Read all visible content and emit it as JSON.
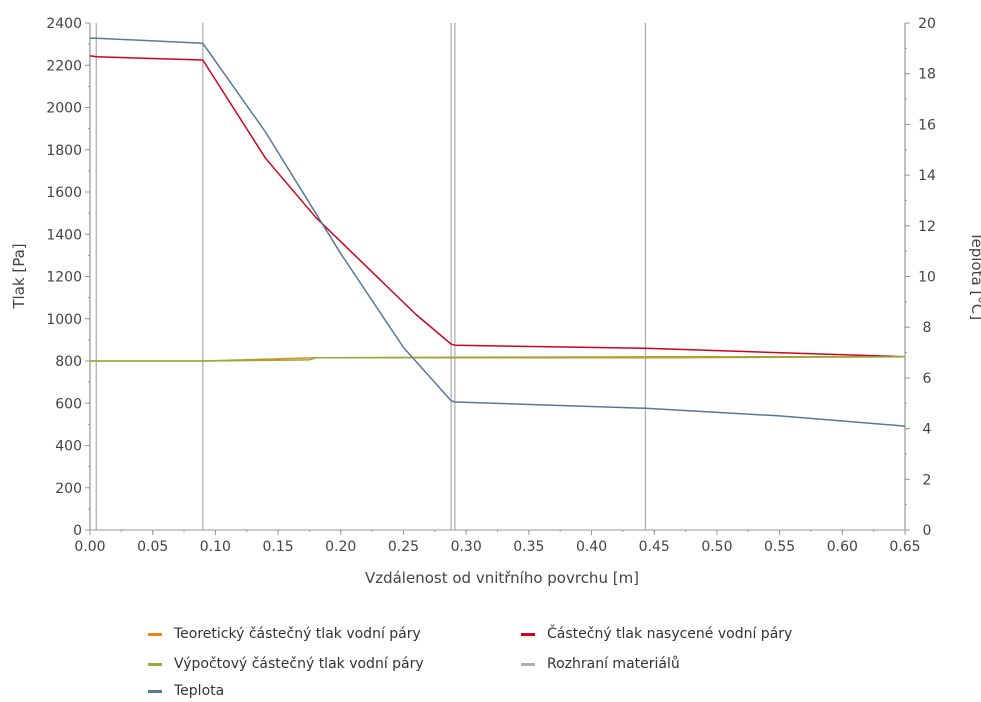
{
  "chart_data": {
    "type": "line",
    "xlabel": "Vzdálenost od vnitřního povrchu [m]",
    "ylabel_left": "Tlak [Pa]",
    "ylabel_right": "Teplota [°C]",
    "xlim": [
      0,
      0.65
    ],
    "ylim_left": [
      0,
      2400
    ],
    "ylim_right": [
      0,
      20
    ],
    "x_ticks": [
      "0.00",
      "0.05",
      "0.10",
      "0.15",
      "0.20",
      "0.25",
      "0.30",
      "0.35",
      "0.40",
      "0.45",
      "0.50",
      "0.55",
      "0.60",
      "0.65"
    ],
    "y_ticks_left": [
      "0",
      "200",
      "400",
      "600",
      "800",
      "1000",
      "1200",
      "1400",
      "1600",
      "1800",
      "2000",
      "2200",
      "2400"
    ],
    "y_ticks_right": [
      "0",
      "2",
      "4",
      "6",
      "8",
      "10",
      "12",
      "14",
      "16",
      "18",
      "20"
    ],
    "grid": false,
    "legend_position": "bottom",
    "material_boundaries": [
      0.0,
      0.005,
      0.09,
      0.288,
      0.291,
      0.443,
      0.65
    ],
    "series": [
      {
        "name": "Teoretický částečný tlak vodní páry",
        "axis": "left",
        "color": "#e8891c",
        "x": [
          0,
          0.09,
          0.18,
          0.29,
          0.443,
          0.65
        ],
        "y": [
          800,
          800,
          815,
          818,
          820,
          820
        ]
      },
      {
        "name": "Částečný tlak nasycené vodní páry",
        "axis": "left",
        "color": "#d0021b",
        "x": [
          0,
          0.005,
          0.09,
          0.14,
          0.18,
          0.22,
          0.26,
          0.288,
          0.291,
          0.443,
          0.65
        ],
        "y": [
          2245,
          2240,
          2225,
          1760,
          1480,
          1250,
          1020,
          880,
          875,
          860,
          820
        ]
      },
      {
        "name": "Výpočtový částečný tlak vodní páry",
        "axis": "left",
        "color": "#8fae3c",
        "x": [
          0,
          0.09,
          0.175,
          0.18,
          0.29,
          0.443,
          0.65
        ],
        "y": [
          800,
          800,
          805,
          815,
          815,
          815,
          820
        ]
      },
      {
        "name": "Rozhraní materiálů",
        "axis": "left",
        "color": "#b0b0b0",
        "x": [],
        "y": []
      },
      {
        "name": "Teplota",
        "axis": "right",
        "color": "#56789a",
        "x": [
          0,
          0.005,
          0.09,
          0.14,
          0.2,
          0.25,
          0.288,
          0.291,
          0.443,
          0.55,
          0.65
        ],
        "y": [
          19.4,
          19.4,
          19.2,
          15.7,
          10.9,
          7.2,
          5.1,
          5.05,
          4.8,
          4.5,
          4.1
        ]
      }
    ],
    "legend": [
      {
        "label": "Teoretický částečný tlak vodní páry",
        "color": "#e8891c"
      },
      {
        "label": "Částečný tlak nasycené vodní páry",
        "color": "#d0021b"
      },
      {
        "label": "Výpočtový částečný tlak vodní páry",
        "color": "#8fae3c"
      },
      {
        "label": "Rozhraní materiálů",
        "color": "#b0b0b0"
      },
      {
        "label": "Teplota",
        "color": "#56789a"
      }
    ]
  }
}
